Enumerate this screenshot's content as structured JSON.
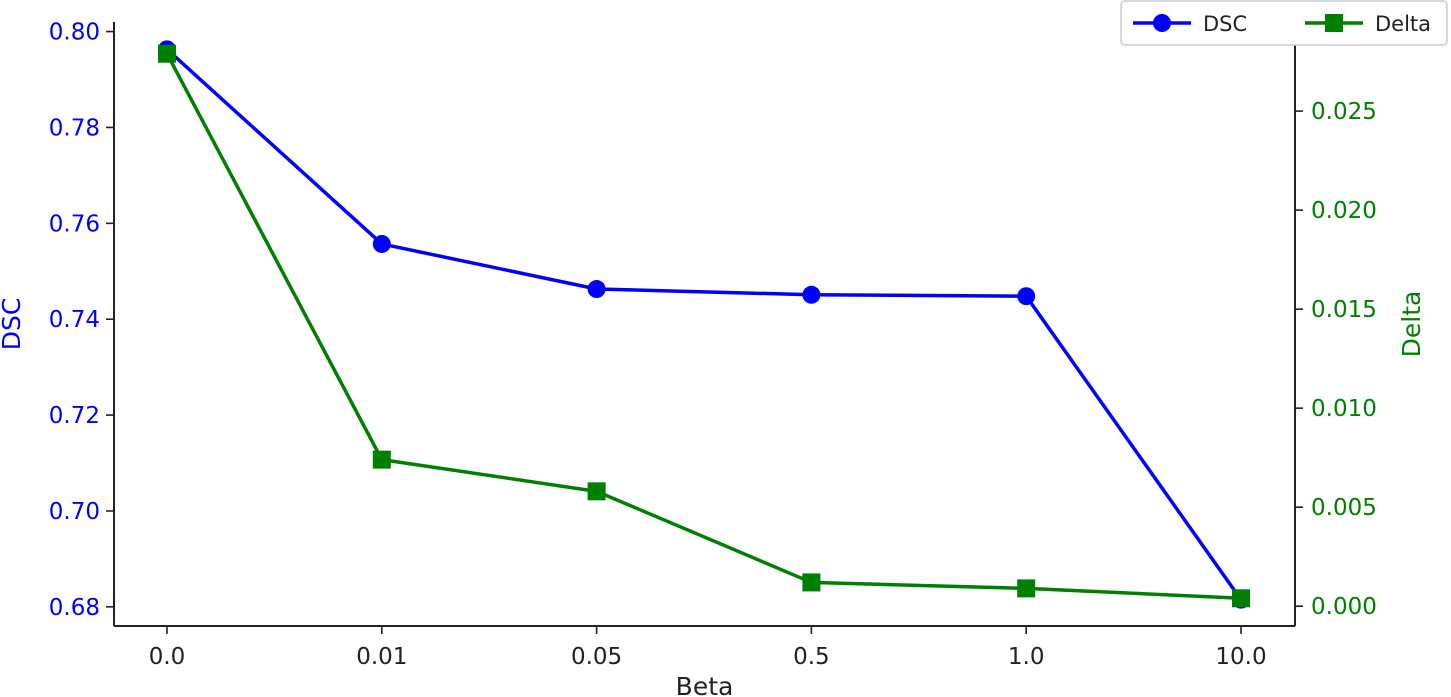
{
  "chart_data": {
    "type": "line",
    "title": "",
    "xlabel": "Beta",
    "categories": [
      "0.0",
      "0.01",
      "0.05",
      "0.5",
      "1.0",
      "10.0"
    ],
    "y_left": {
      "label": "DSC",
      "color": "#0000ff",
      "range": [
        0.676,
        0.802
      ],
      "ticks": [
        "0.68",
        "0.70",
        "0.72",
        "0.74",
        "0.76",
        "0.78",
        "0.80"
      ]
    },
    "y_right": {
      "label": "Delta",
      "color": "#008000",
      "range": [
        -0.001,
        0.0295
      ],
      "ticks": [
        "0.000",
        "0.005",
        "0.010",
        "0.015",
        "0.020",
        "0.025"
      ]
    },
    "series": [
      {
        "name": "DSC",
        "axis": "left",
        "marker": "circle",
        "color": "#0000ff",
        "values": [
          0.7963,
          0.7557,
          0.7463,
          0.7451,
          0.7448,
          0.6815
        ]
      },
      {
        "name": "Delta",
        "axis": "right",
        "marker": "square",
        "color": "#008000",
        "values": [
          0.0279,
          0.0074,
          0.0058,
          0.0012,
          0.0009,
          0.0004
        ]
      }
    ],
    "legend": {
      "placement": "top-right"
    },
    "grid": false
  }
}
